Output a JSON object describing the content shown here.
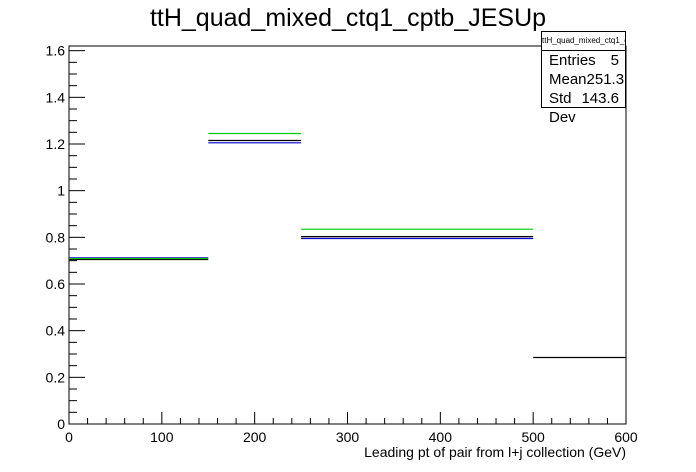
{
  "chart_data": {
    "type": "histogram",
    "title": "ttH_quad_mixed_ctq1_cptb_JESUp",
    "xlabel": "Leading pt of pair from l+j collection (GeV)",
    "ylabel": "",
    "xlim": [
      0,
      600
    ],
    "ylim": [
      0,
      1.62
    ],
    "xticks": [
      "0",
      "100",
      "200",
      "300",
      "400",
      "500",
      "600"
    ],
    "yticks": [
      "0",
      "0.2",
      "0.4",
      "0.6",
      "0.8",
      "1",
      "1.2",
      "1.4",
      "1.6"
    ],
    "bin_edges": [
      0,
      150,
      250,
      500,
      600
    ],
    "series": [
      {
        "color": "#000000",
        "values": [
          0.705,
          1.215,
          0.803,
          0.285
        ]
      },
      {
        "color": "#0000cc",
        "values": [
          0.712,
          1.205,
          0.795,
          null
        ]
      },
      {
        "color": "#00cc00",
        "values": [
          0.709,
          1.245,
          0.835,
          null
        ]
      }
    ],
    "grid": false,
    "legend": "top-right"
  },
  "stats": {
    "name": "ttH_quad_mixed_ctq1_cptb_JESUp",
    "rows": [
      {
        "label": "Entries",
        "value": "5"
      },
      {
        "label": "Mean",
        "value": "251.3"
      },
      {
        "label": "Std Dev",
        "value": "143.6"
      }
    ]
  }
}
